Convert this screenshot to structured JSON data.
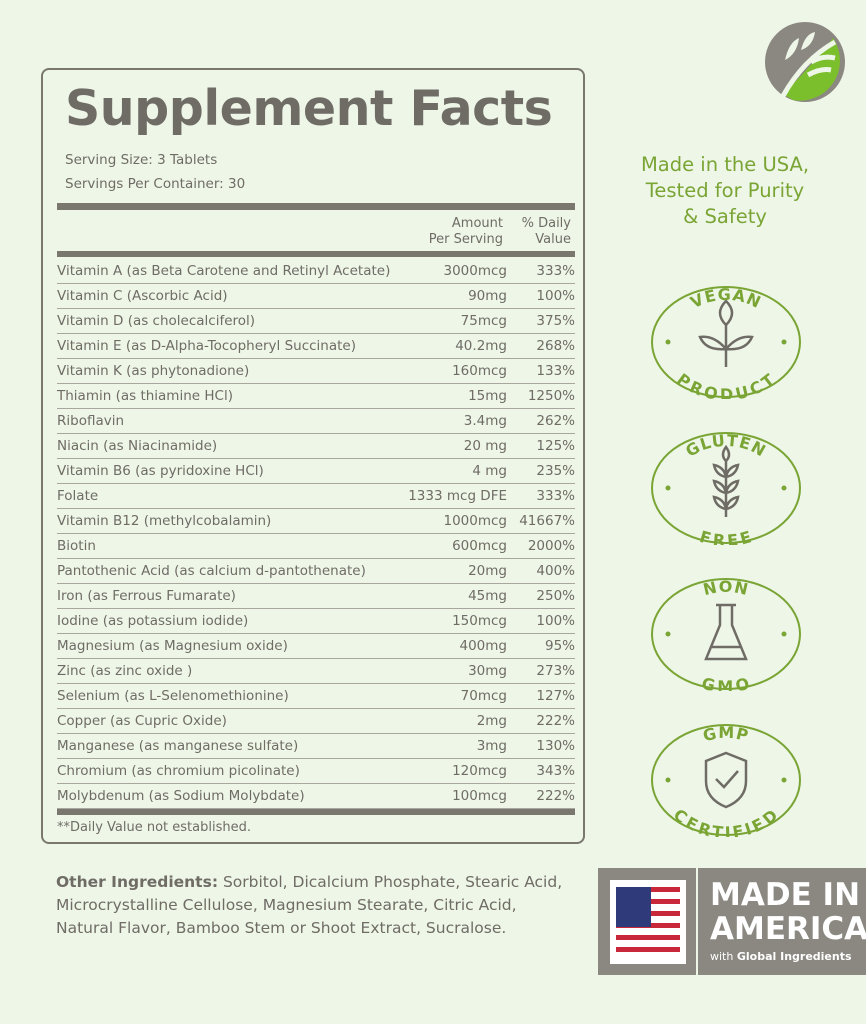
{
  "title": "Supplement Facts",
  "serving_size": "Serving Size: 3 Tablets",
  "servings_per_container": "Servings Per Container: 30",
  "columns": {
    "amount_1": "Amount",
    "amount_2": "Per Serving",
    "dv_1": "% Daily",
    "dv_2": "Value"
  },
  "rows": [
    {
      "name": "Vitamin A (as Beta Carotene and Retinyl Acetate)",
      "amount": "3000mcg",
      "dv": "333%"
    },
    {
      "name": "Vitamin C (Ascorbic Acid)",
      "amount": "90mg",
      "dv": "100%"
    },
    {
      "name": "Vitamin D (as cholecalciferol)",
      "amount": "75mcg",
      "dv": "375%"
    },
    {
      "name": "Vitamin E (as D-Alpha-Tocopheryl Succinate)",
      "amount": "40.2mg",
      "dv": "268%"
    },
    {
      "name": "Vitamin K (as phytonadione)",
      "amount": "160mcg",
      "dv": "133%"
    },
    {
      "name": "Thiamin (as thiamine HCl)",
      "amount": "15mg",
      "dv": "1250%"
    },
    {
      "name": "Riboflavin",
      "amount": "3.4mg",
      "dv": "262%"
    },
    {
      "name": "Niacin (as Niacinamide)",
      "amount": "20 mg",
      "dv": "125%"
    },
    {
      "name": "Vitamin B6 (as pyridoxine HCl)",
      "amount": "4 mg",
      "dv": "235%"
    },
    {
      "name": "Folate",
      "amount": "1333 mcg DFE",
      "dv": "333%"
    },
    {
      "name": "Vitamin B12 (methylcobalamin)",
      "amount": "1000mcg",
      "dv": "41667%"
    },
    {
      "name": "Biotin",
      "amount": "600mcg",
      "dv": "2000%"
    },
    {
      "name": "Pantothenic Acid (as calcium d-pantothenate)",
      "amount": "20mg",
      "dv": "400%"
    },
    {
      "name": "Iron (as Ferrous Fumarate)",
      "amount": "45mg",
      "dv": "250%"
    },
    {
      "name": "Iodine (as potassium iodide)",
      "amount": "150mcg",
      "dv": "100%"
    },
    {
      "name": "Magnesium (as Magnesium oxide)",
      "amount": "400mg",
      "dv": "95%"
    },
    {
      "name": "Zinc (as zinc oxide )",
      "amount": "30mg",
      "dv": "273%"
    },
    {
      "name": "Selenium (as L-Selenomethionine)",
      "amount": "70mcg",
      "dv": "127%"
    },
    {
      "name": "Copper (as Cupric Oxide)",
      "amount": "2mg",
      "dv": "222%"
    },
    {
      "name": "Manganese (as manganese sulfate)",
      "amount": "3mg",
      "dv": "130%"
    },
    {
      "name": "Chromium (as chromium picolinate)",
      "amount": "120mcg",
      "dv": "343%"
    },
    {
      "name": "Molybdenum (as Sodium Molybdate)",
      "amount": "100mcg",
      "dv": "222%"
    }
  ],
  "footnote": "**Daily Value not established.",
  "other_label": "Other Ingredients:",
  "other_text": " Sorbitol, Dicalcium Phosphate, Stearic Acid, Microcrystalline Cellulose, Magnesium Stearate, Citric Acid, Natural Flavor, Bamboo Stem or Shoot Extract, Sucralose.",
  "made_line1": "Made in the USA,",
  "made_line2": "Tested for Purity",
  "made_line3": "& Safety",
  "badges": [
    {
      "top": "VEGAN",
      "bottom": "PRODUCT",
      "icon": "leaf-icon"
    },
    {
      "top": "GLUTEN",
      "bottom": "FREE",
      "icon": "wheat-icon"
    },
    {
      "top": "NON",
      "bottom": "GMO",
      "icon": "flask-icon"
    },
    {
      "top": "GMP",
      "bottom": "CERTIFIED",
      "icon": "shield-check-icon"
    }
  ],
  "usa": {
    "line1": "MADE IN",
    "line2": "AMERICA",
    "with": "with ",
    "global": "Global Ingredients"
  },
  "colors": {
    "green": "#7aa535",
    "gray": "#6f6c66",
    "background": "#eef6e8"
  }
}
